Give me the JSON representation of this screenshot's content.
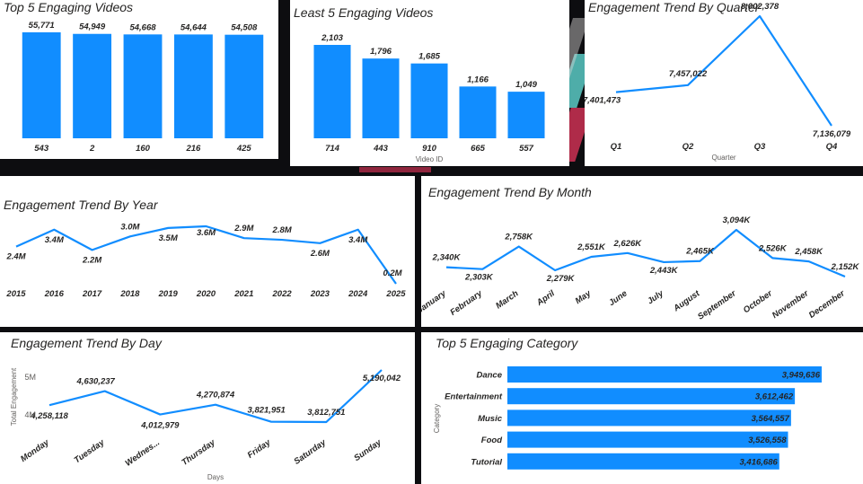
{
  "colors": {
    "accent": "#118DFF",
    "text": "#252423",
    "axis": "#605E5C"
  },
  "charts": {
    "top_videos": {
      "title": "Top 5 Engaging Videos",
      "chart_data": {
        "type": "bar",
        "title": "Top 5 Engaging Videos",
        "categories": [
          "543",
          "2",
          "160",
          "216",
          "425"
        ],
        "values": [
          55771,
          54949,
          54668,
          54644,
          54508
        ],
        "labels": [
          "55,771",
          "54,949",
          "54,668",
          "54,644",
          "54,508"
        ],
        "xlabel": "",
        "ylabel": ""
      }
    },
    "least_videos": {
      "title": "Least 5 Engaging Videos",
      "chart_data": {
        "type": "bar",
        "title": "Least 5 Engaging Videos",
        "categories": [
          "714",
          "443",
          "910",
          "665",
          "557"
        ],
        "values": [
          2103,
          1796,
          1685,
          1166,
          1049
        ],
        "labels": [
          "2,103",
          "1,796",
          "1,685",
          "1,166",
          "1,049"
        ],
        "xlabel": "Video ID",
        "ylabel": ""
      }
    },
    "quarter": {
      "title": "Engagement Trend By Quarter",
      "chart_data": {
        "type": "line",
        "title": "Engagement Trend By Quarter",
        "categories": [
          "Q1",
          "Q2",
          "Q3",
          "Q4"
        ],
        "values": [
          7401473,
          7457022,
          8002378,
          7136079
        ],
        "labels": [
          "7,401,473",
          "7,457,022",
          "8,002,378",
          "7,136,079"
        ],
        "xlabel": "Quarter",
        "ylabel": ""
      }
    },
    "year": {
      "title": "Engagement Trend By Year",
      "chart_data": {
        "type": "line",
        "title": "Engagement Trend By Year",
        "categories": [
          "2015",
          "2016",
          "2017",
          "2018",
          "2019",
          "2020",
          "2021",
          "2022",
          "2023",
          "2024",
          "2025"
        ],
        "values": [
          2.4,
          3.4,
          2.2,
          3.0,
          3.5,
          3.6,
          2.9,
          2.8,
          2.6,
          3.4,
          0.2
        ],
        "labels": [
          "2.4M",
          "3.4M",
          "2.2M",
          "3.0M",
          "3.5M",
          "3.6M",
          "2.9M",
          "2.8M",
          "2.6M",
          "3.4M",
          "0.2M"
        ],
        "xlabel": "",
        "ylabel": ""
      }
    },
    "month": {
      "title": "Engagement Trend By Month",
      "chart_data": {
        "type": "line",
        "title": "Engagement Trend By Month",
        "categories": [
          "January",
          "February",
          "March",
          "April",
          "May",
          "June",
          "July",
          "August",
          "September",
          "October",
          "November",
          "December"
        ],
        "values": [
          2340,
          2303,
          2758,
          2279,
          2551,
          2626,
          2443,
          2465,
          3094,
          2526,
          2458,
          2152
        ],
        "labels": [
          "2,340K",
          "2,303K",
          "2,758K",
          "2,279K",
          "2,551K",
          "2,626K",
          "2,443K",
          "2,465K",
          "3,094K",
          "2,526K",
          "2,458K",
          "2,152K"
        ],
        "xlabel": "",
        "ylabel": ""
      }
    },
    "day": {
      "title": "Engagement Trend By Day",
      "chart_data": {
        "type": "line",
        "title": "Engagement Trend By Day",
        "categories": [
          "Monday",
          "Tuesday",
          "Wednes...",
          "Thursday",
          "Friday",
          "Saturday",
          "Sunday"
        ],
        "values": [
          4258118,
          4630237,
          4012979,
          4270874,
          3821951,
          3812751,
          5190042
        ],
        "labels": [
          "4,258,118",
          "4,630,237",
          "4,012,979",
          "4,270,874",
          "3,821,951",
          "3,812,751",
          "5,190,042"
        ],
        "yticks": [
          "4M",
          "5M"
        ],
        "ytick_values": [
          4000000,
          5000000
        ],
        "xlabel": "Days",
        "ylabel": "Total Engagement"
      }
    },
    "category": {
      "title": "Top 5 Engaging Category",
      "chart_data": {
        "type": "bar",
        "orientation": "horizontal",
        "title": "Top 5 Engaging Category",
        "categories": [
          "Dance",
          "Entertainment",
          "Music",
          "Food",
          "Tutorial"
        ],
        "values": [
          3949636,
          3612462,
          3564557,
          3526558,
          3416686
        ],
        "labels": [
          "3,949,636",
          "3,612,462",
          "3,564,557",
          "3,526,558",
          "3,416,686"
        ],
        "xlabel": "",
        "ylabel": "Category"
      }
    }
  }
}
